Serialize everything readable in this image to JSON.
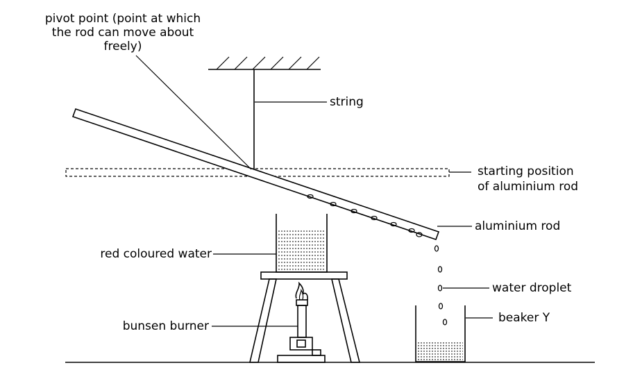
{
  "labels": {
    "pivot_line1": "pivot point (point at which",
    "pivot_line2": "the rod can move about",
    "pivot_line3": "freely)",
    "string": "string",
    "starting_line1": "starting position",
    "starting_line2": "of aluminium rod",
    "aluminium_rod": "aluminium rod",
    "red_water": "red coloured water",
    "water_droplet": "water droplet",
    "bunsen_burner": "bunsen burner",
    "beaker": "beaker Y"
  }
}
